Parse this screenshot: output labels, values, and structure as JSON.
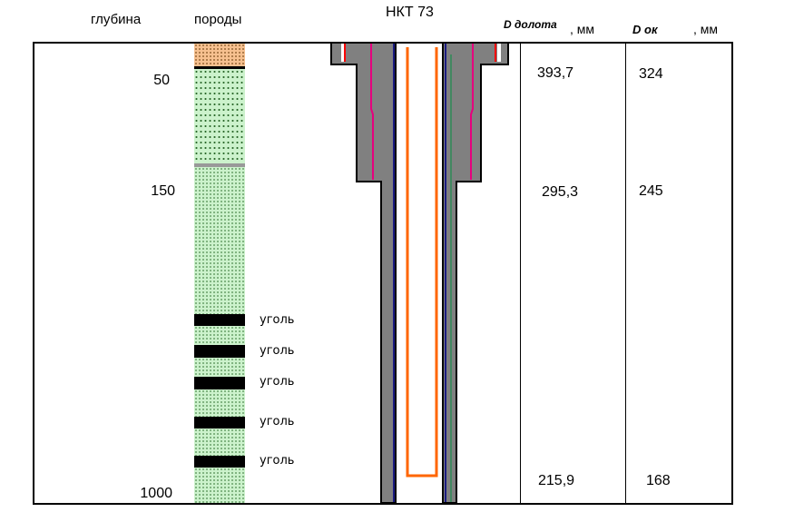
{
  "headers": {
    "depth": "глубина",
    "rocks": "породы",
    "tubing": "НКТ 73",
    "bit_label": "D долота",
    "bit_unit": ", мм",
    "casing_label": "D ок",
    "casing_unit": ", мм"
  },
  "depths": [
    "50",
    "150",
    "1000"
  ],
  "coal_label": "уголь",
  "coal_labels": [
    "уголь",
    "уголь",
    "уголь",
    "уголь",
    "уголь"
  ],
  "bit_diameters": [
    "393,7",
    "295,3",
    "215,9"
  ],
  "casing_diameters": [
    "324",
    "245",
    "168"
  ],
  "colors": {
    "cement": "#808080",
    "tubing": "#ff6600",
    "casing_red": "#ff0000",
    "casing_magenta": "#e6007e",
    "liner_blue": "#1a1a80",
    "liner_green": "#2e8b57",
    "sand": "#ccf2cc",
    "soil": "#f6c08f",
    "coal": "#000000"
  }
}
